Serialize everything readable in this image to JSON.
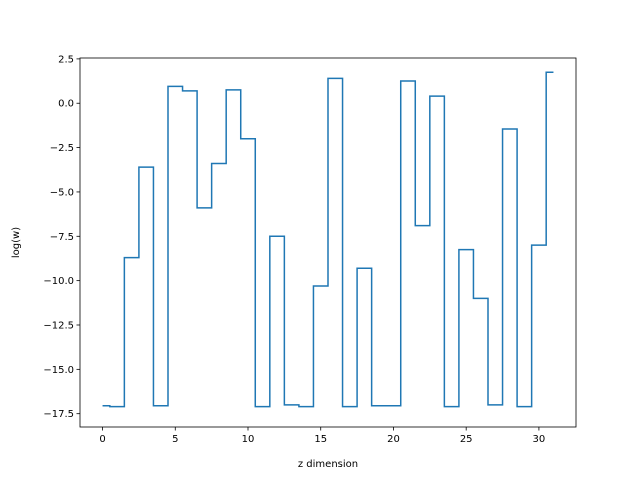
{
  "chart_data": {
    "type": "line",
    "drawstyle": "steps-mid",
    "title": "",
    "xlabel": "z dimension",
    "ylabel": "log(w)",
    "xlim": [
      -1.55,
      32.55
    ],
    "ylim": [
      -18.25,
      2.55
    ],
    "xticks": [
      0,
      5,
      10,
      15,
      20,
      25,
      30
    ],
    "yticks": [
      2.5,
      0.0,
      -2.5,
      -5.0,
      -7.5,
      -10.0,
      -12.5,
      -15.0,
      -17.5
    ],
    "ytick_labels": [
      "2.5",
      "0.0",
      "−2.5",
      "−5.0",
      "−7.5",
      "−10.0",
      "−12.5",
      "−15.0",
      "−17.5"
    ],
    "grid": false,
    "legend": "none",
    "series": [
      {
        "color": "#1f77b4",
        "x": [
          0,
          1,
          2,
          3,
          4,
          5,
          6,
          7,
          8,
          9,
          10,
          11,
          12,
          13,
          14,
          15,
          16,
          17,
          18,
          19,
          20,
          21,
          22,
          23,
          24,
          25,
          26,
          27,
          28,
          29,
          30,
          31
        ],
        "y": [
          -17.05,
          -17.1,
          -8.7,
          -3.6,
          -17.05,
          0.95,
          0.7,
          -5.9,
          -3.4,
          0.75,
          -2.0,
          -17.1,
          -7.5,
          -17.0,
          -17.1,
          -10.3,
          1.4,
          -17.1,
          -9.3,
          -17.05,
          -17.05,
          1.25,
          -6.9,
          0.4,
          -17.1,
          -8.25,
          -11.0,
          -17.0,
          -1.45,
          -17.1,
          -8.0,
          1.75
        ]
      }
    ]
  }
}
